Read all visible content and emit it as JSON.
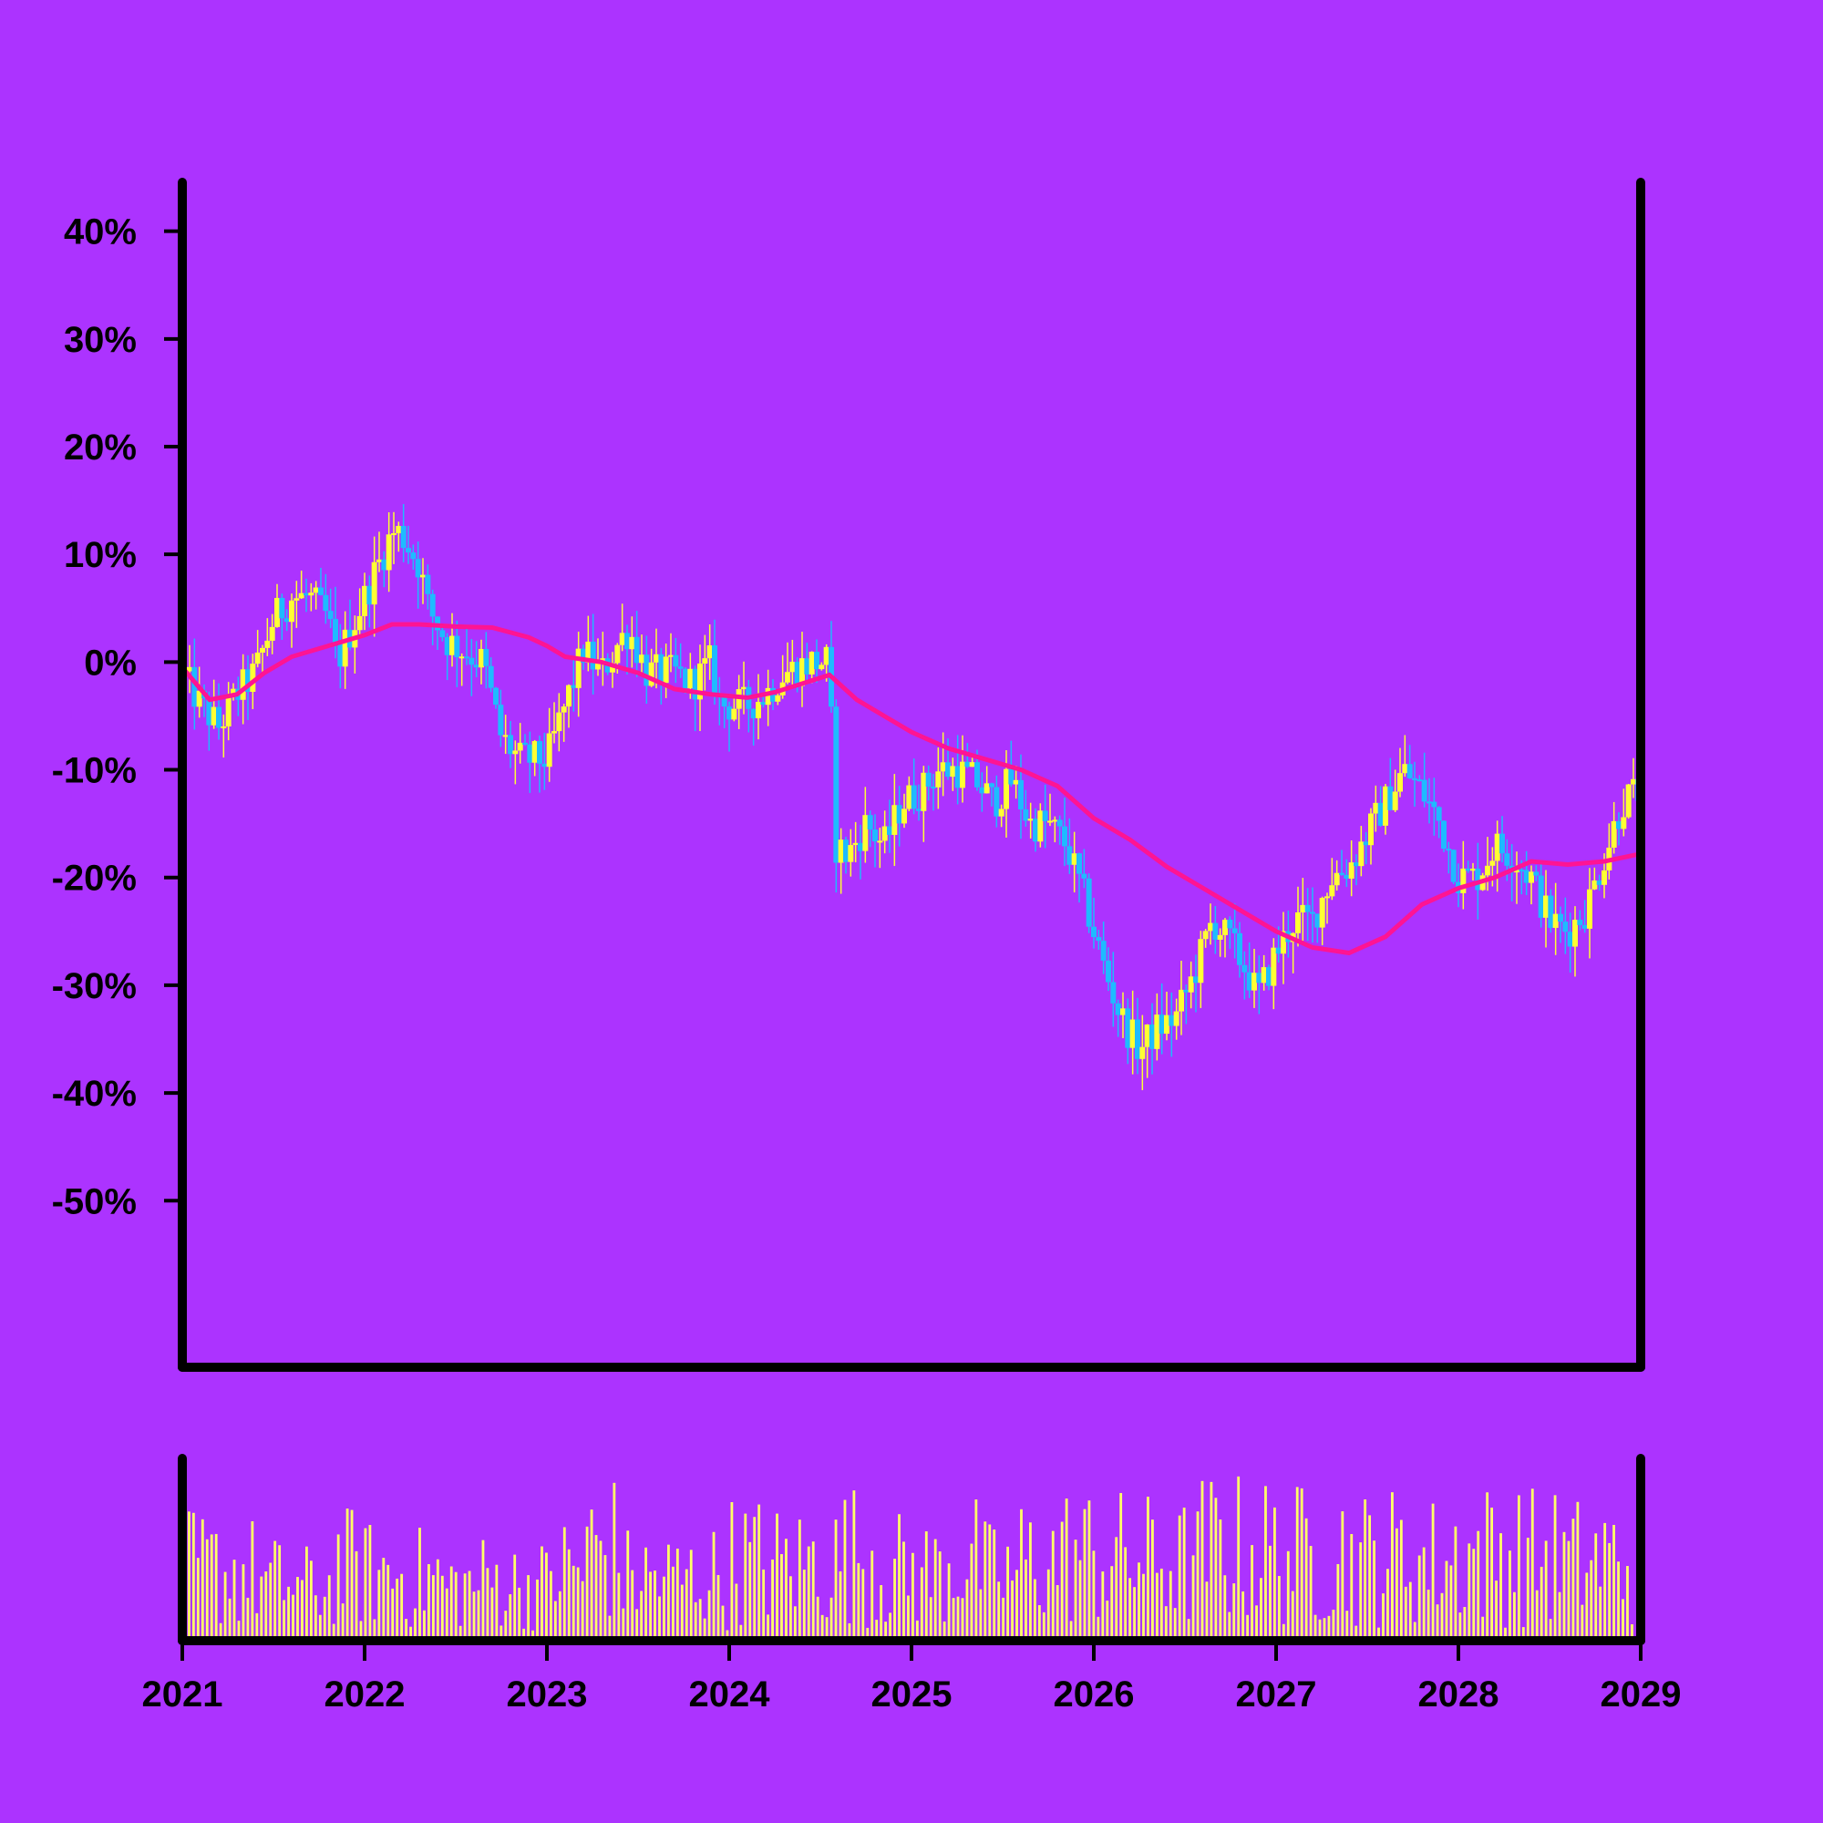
{
  "colors": {
    "background": "#AC33FF",
    "up": "#FFFF33",
    "down": "#1EBBFF",
    "ma_line": "#FF1493",
    "volume": "#FFFF66",
    "axis": "#000000"
  },
  "chart_data": [
    {
      "type": "candlestick",
      "title": "",
      "xlabel": "",
      "ylabel": "",
      "ylim": [
        -57,
        42
      ],
      "xlim": [
        2021.0,
        2029.0
      ],
      "grid": false,
      "legend": "none",
      "y_ticks": [
        40,
        30,
        20,
        10,
        0,
        -10,
        -20,
        -30,
        -40,
        -50
      ],
      "y_tick_labels": [
        "40%",
        "30%",
        "20%",
        "10%",
        "0%",
        "-10%",
        "-20%",
        "-30%",
        "-40%",
        "-50%"
      ],
      "close_path": [
        [
          2021.0,
          -1
        ],
        [
          2021.1,
          -4
        ],
        [
          2021.2,
          -6
        ],
        [
          2021.3,
          -3
        ],
        [
          2021.4,
          -1
        ],
        [
          2021.5,
          4
        ],
        [
          2021.6,
          6
        ],
        [
          2021.7,
          6
        ],
        [
          2021.8,
          4
        ],
        [
          2021.85,
          0
        ],
        [
          2021.95,
          4
        ],
        [
          2022.05,
          8
        ],
        [
          2022.1,
          10
        ],
        [
          2022.15,
          12
        ],
        [
          2022.2,
          12
        ],
        [
          2022.3,
          9
        ],
        [
          2022.35,
          5
        ],
        [
          2022.45,
          2
        ],
        [
          2022.55,
          1
        ],
        [
          2022.65,
          0
        ],
        [
          2022.75,
          -7
        ],
        [
          2022.85,
          -9
        ],
        [
          2022.95,
          -9
        ],
        [
          2023.0,
          -9
        ],
        [
          2023.1,
          -4
        ],
        [
          2023.2,
          1
        ],
        [
          2023.3,
          -1
        ],
        [
          2023.4,
          2
        ],
        [
          2023.45,
          3
        ],
        [
          2023.55,
          -1
        ],
        [
          2023.7,
          -1
        ],
        [
          2023.8,
          -2
        ],
        [
          2023.9,
          0
        ],
        [
          2023.95,
          -4
        ],
        [
          2024.1,
          -4
        ],
        [
          2024.2,
          -3
        ],
        [
          2024.3,
          -1
        ],
        [
          2024.45,
          0
        ],
        [
          2024.55,
          0
        ],
        [
          2024.58,
          -17
        ],
        [
          2024.65,
          -18
        ],
        [
          2024.75,
          -15
        ],
        [
          2024.85,
          -17
        ],
        [
          2024.95,
          -13
        ],
        [
          2025.05,
          -12
        ],
        [
          2025.15,
          -10
        ],
        [
          2025.25,
          -10
        ],
        [
          2025.35,
          -11
        ],
        [
          2025.45,
          -13
        ],
        [
          2025.55,
          -11
        ],
        [
          2025.65,
          -15
        ],
        [
          2025.75,
          -15
        ],
        [
          2025.85,
          -17
        ],
        [
          2025.95,
          -22
        ],
        [
          2026.05,
          -28
        ],
        [
          2026.15,
          -33
        ],
        [
          2026.25,
          -36
        ],
        [
          2026.35,
          -34
        ],
        [
          2026.45,
          -33
        ],
        [
          2026.55,
          -29
        ],
        [
          2026.65,
          -24
        ],
        [
          2026.75,
          -26
        ],
        [
          2026.85,
          -29
        ],
        [
          2026.9,
          -31
        ],
        [
          2027.0,
          -27
        ],
        [
          2027.1,
          -24
        ],
        [
          2027.2,
          -24
        ],
        [
          2027.3,
          -20
        ],
        [
          2027.4,
          -19
        ],
        [
          2027.5,
          -16
        ],
        [
          2027.6,
          -13
        ],
        [
          2027.7,
          -10
        ],
        [
          2027.8,
          -12
        ],
        [
          2027.9,
          -15
        ],
        [
          2028.0,
          -20
        ],
        [
          2028.1,
          -20
        ],
        [
          2028.2,
          -17
        ],
        [
          2028.3,
          -18
        ],
        [
          2028.4,
          -20
        ],
        [
          2028.5,
          -24
        ],
        [
          2028.6,
          -25
        ],
        [
          2028.7,
          -23
        ],
        [
          2028.8,
          -18
        ],
        [
          2028.9,
          -13
        ],
        [
          2028.98,
          -12
        ]
      ],
      "moving_average": [
        [
          2021.0,
          -0.5
        ],
        [
          2021.05,
          -1.5
        ],
        [
          2021.15,
          -3.5
        ],
        [
          2021.3,
          -3
        ],
        [
          2021.45,
          -1
        ],
        [
          2021.6,
          0.5
        ],
        [
          2021.8,
          1.5
        ],
        [
          2022.0,
          2.5
        ],
        [
          2022.15,
          3.5
        ],
        [
          2022.3,
          3.5
        ],
        [
          2022.5,
          3.3
        ],
        [
          2022.7,
          3.2
        ],
        [
          2022.9,
          2.3
        ],
        [
          2023.0,
          1.5
        ],
        [
          2023.1,
          0.5
        ],
        [
          2023.3,
          0
        ],
        [
          2023.5,
          -1
        ],
        [
          2023.7,
          -2.5
        ],
        [
          2023.9,
          -3
        ],
        [
          2024.1,
          -3.3
        ],
        [
          2024.25,
          -2.8
        ],
        [
          2024.4,
          -2
        ],
        [
          2024.55,
          -1.2
        ],
        [
          2024.7,
          -3.5
        ],
        [
          2024.85,
          -5
        ],
        [
          2025.0,
          -6.5
        ],
        [
          2025.2,
          -8
        ],
        [
          2025.4,
          -9
        ],
        [
          2025.6,
          -10
        ],
        [
          2025.8,
          -11.5
        ],
        [
          2026.0,
          -14.5
        ],
        [
          2026.2,
          -16.5
        ],
        [
          2026.4,
          -19
        ],
        [
          2026.6,
          -21
        ],
        [
          2026.8,
          -23
        ],
        [
          2027.0,
          -25
        ],
        [
          2027.2,
          -26.5
        ],
        [
          2027.4,
          -27
        ],
        [
          2027.6,
          -25.5
        ],
        [
          2027.8,
          -22.5
        ],
        [
          2028.0,
          -21
        ],
        [
          2028.2,
          -20
        ],
        [
          2028.4,
          -18.5
        ],
        [
          2028.6,
          -18.8
        ],
        [
          2028.8,
          -18.5
        ],
        [
          2029.0,
          -17.8
        ]
      ],
      "annotations": "jagged candlestick series with many small candles; gap down near mid-2024"
    },
    {
      "type": "bar",
      "title": "",
      "xlabel": "",
      "ylabel": "",
      "grid": false,
      "series_name": "volume",
      "relative_volume_bucket_maxima": [
        0.76,
        0.72,
        0.6,
        0.55,
        0.78,
        0.7,
        0.66,
        0.56,
        0.62,
        0.58,
        0.75,
        0.98,
        0.66,
        0.65,
        0.68,
        0.85,
        0.8,
        0.82,
        0.93,
        0.75,
        0.72,
        0.86,
        0.7,
        0.85,
        0.92,
        0.88,
        0.86,
        0.82,
        1.0,
        0.98,
        0.92,
        0.95,
        0.88,
        0.9,
        0.85,
        0.93,
        0.94,
        0.9,
        0.84,
        0.86
      ],
      "x_ticks": [
        2021,
        2022,
        2023,
        2024,
        2025,
        2026,
        2027,
        2028,
        2029
      ],
      "x_tick_labels": [
        "2021",
        "2022",
        "2023",
        "2024",
        "2025",
        "2026",
        "2027",
        "2028",
        "2029"
      ]
    }
  ]
}
